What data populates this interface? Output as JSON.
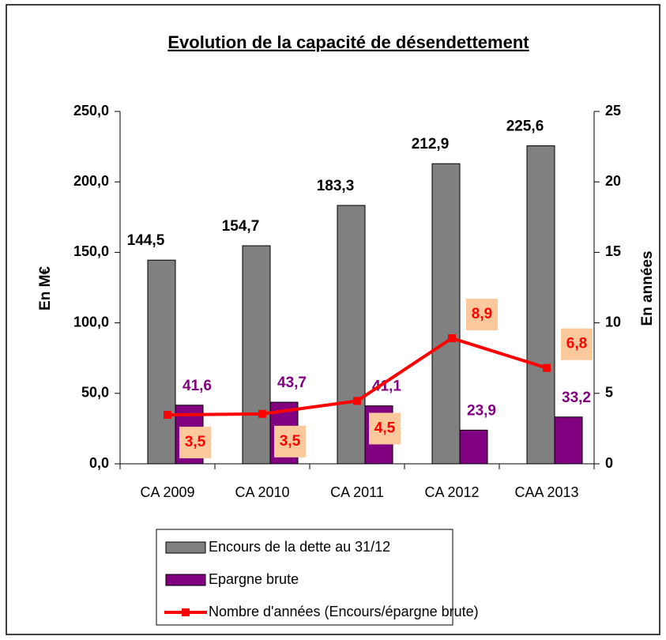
{
  "chart_data": {
    "type": "bar",
    "title": "Evolution de la capacité de désendettement",
    "categories": [
      "CA 2009",
      "CA 2010",
      "CA 2011",
      "CA 2012",
      "CAA 2013"
    ],
    "series": [
      {
        "name": "Encours de la dette au 31/12",
        "color": "#808080",
        "values": [
          144.5,
          154.7,
          183.3,
          212.9,
          225.6
        ],
        "value_labels": [
          "144,5",
          "154,7",
          "183,3",
          "212,9",
          "225,6"
        ]
      },
      {
        "name": "Epargne brute",
        "color": "#800080",
        "values": [
          41.6,
          43.7,
          41.1,
          23.9,
          33.2
        ],
        "value_labels": [
          "41,6",
          "43,7",
          "41,1",
          "23,9",
          "33,2"
        ]
      },
      {
        "name": "Nombre d'années (Encours/épargne brute)",
        "type": "line",
        "axis": "y2",
        "color": "#ff0000",
        "values": [
          3.47,
          3.54,
          4.46,
          8.91,
          6.8
        ],
        "value_labels": [
          "3,5",
          "3,5",
          "4,5",
          "8,9",
          "6,8"
        ]
      }
    ],
    "ylabel": "En M€",
    "y2label": "En années",
    "ylim": [
      0,
      250
    ],
    "yticks": [
      {
        "value": 0,
        "label": "0,0"
      },
      {
        "value": 50,
        "label": "50,0"
      },
      {
        "value": 100,
        "label": "100,0"
      },
      {
        "value": 150,
        "label": "150,0"
      },
      {
        "value": 200,
        "label": "200,0"
      },
      {
        "value": 250,
        "label": "250,0"
      }
    ],
    "y2lim": [
      0,
      25
    ],
    "y2ticks": [
      0,
      5,
      10,
      15,
      20,
      25
    ],
    "legend": "bottom"
  }
}
